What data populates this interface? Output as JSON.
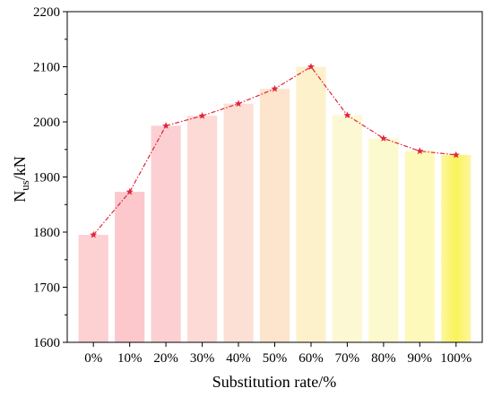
{
  "chart_data": {
    "type": "bar",
    "categories": [
      "0%",
      "10%",
      "20%",
      "30%",
      "40%",
      "50%",
      "60%",
      "70%",
      "80%",
      "90%",
      "100%"
    ],
    "values": [
      1795,
      1873,
      1993,
      2011,
      2033,
      2060,
      2100,
      2012,
      1970,
      1947,
      1940
    ],
    "overlay_line": {
      "marker": "star",
      "color": "#e0243a",
      "style": "dash-dot"
    },
    "bar_colors": [
      "#fdd0d2",
      "#fcc8cb",
      "#fcd0d2",
      "#fddad6",
      "#fde0d5",
      "#fde4cc",
      "#fdf1cc",
      "#fdf8d4",
      "#fdf9cf",
      "#fdf9bb",
      "#fbf478"
    ],
    "xlabel": "Substitution rate/%",
    "ylabel": {
      "main": "N",
      "sub": "us",
      "unit": "/kN"
    },
    "ylim": [
      1600,
      2200
    ],
    "yticks": [
      "1600",
      "1700",
      "1800",
      "1900",
      "2000",
      "2100",
      "2200"
    ],
    "grid": false,
    "legend": "none"
  }
}
